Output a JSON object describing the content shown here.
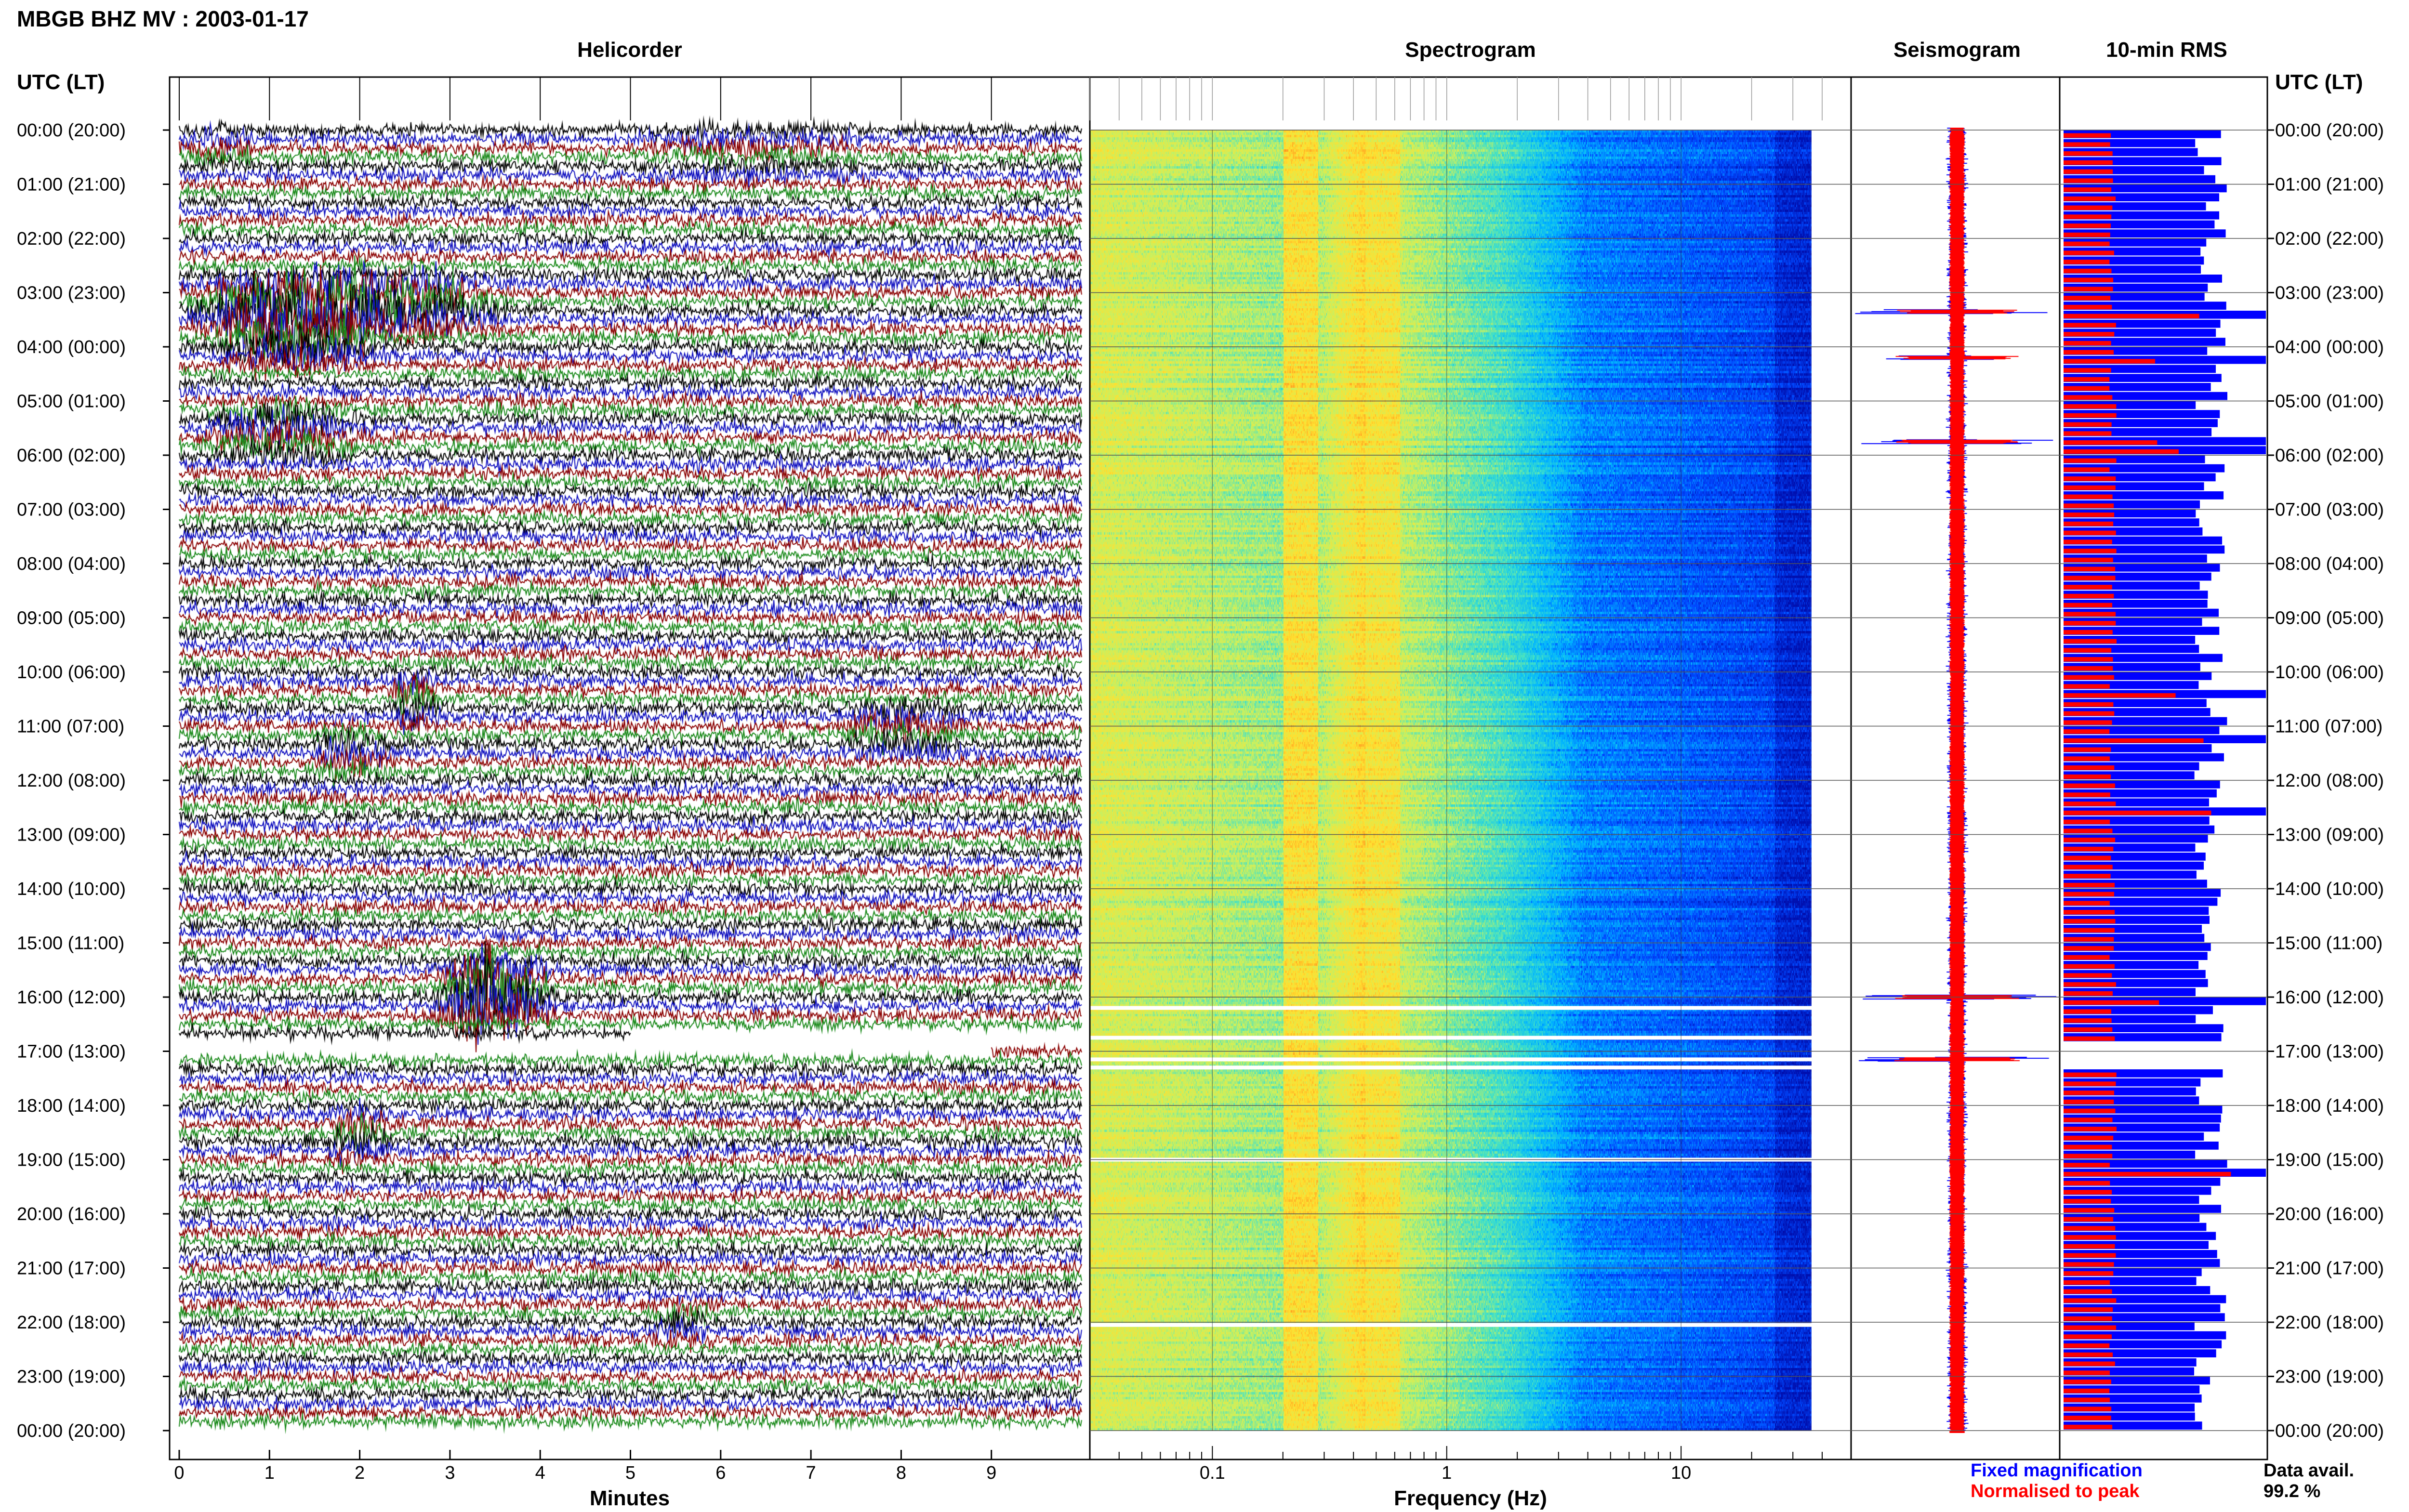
{
  "chart_data": {
    "type": "helicorder-panel",
    "title": "MBGB BHZ MV : 2003-01-17",
    "row_axis_label": "UTC (LT)",
    "hour_labels": [
      "00:00 (20:00)",
      "01:00 (21:00)",
      "02:00 (22:00)",
      "03:00 (23:00)",
      "04:00 (00:00)",
      "05:00 (01:00)",
      "06:00 (02:00)",
      "07:00 (03:00)",
      "08:00 (04:00)",
      "09:00 (05:00)",
      "10:00 (06:00)",
      "11:00 (07:00)",
      "12:00 (08:00)",
      "13:00 (09:00)",
      "14:00 (10:00)",
      "15:00 (11:00)",
      "16:00 (12:00)",
      "17:00 (13:00)",
      "18:00 (14:00)",
      "19:00 (15:00)",
      "20:00 (16:00)",
      "21:00 (17:00)",
      "22:00 (18:00)",
      "23:00 (19:00)",
      "00:00 (20:00)"
    ],
    "panels": {
      "helicorder": {
        "title": "Helicorder",
        "xlabel": "Minutes",
        "xticks": [
          "0",
          "1",
          "2",
          "3",
          "4",
          "5",
          "6",
          "7",
          "8",
          "9"
        ],
        "xlim": [
          0,
          10
        ],
        "trace_colors": [
          "#000000",
          "#1010c0",
          "#8b0000",
          "#1a8a1a"
        ],
        "events": [
          {
            "row": 0.3,
            "start_min": 0.0,
            "end_min": 1.2,
            "amp": 0.6
          },
          {
            "row": 0.35,
            "start_min": 5.0,
            "end_min": 8.5,
            "amp": 0.5
          },
          {
            "row": 3.3,
            "start_min": 0.0,
            "end_min": 4.8,
            "amp": 2.6
          },
          {
            "row": 3.85,
            "start_min": 0.3,
            "end_min": 3.0,
            "amp": 1.6
          },
          {
            "row": 5.55,
            "start_min": 0.2,
            "end_min": 2.8,
            "amp": 1.2
          },
          {
            "row": 10.55,
            "start_min": 2.3,
            "end_min": 3.2,
            "amp": 1.1
          },
          {
            "row": 11.05,
            "start_min": 7.3,
            "end_min": 9.2,
            "amp": 1.0
          },
          {
            "row": 11.5,
            "start_min": 1.4,
            "end_min": 2.7,
            "amp": 1.0
          },
          {
            "row": 15.95,
            "start_min": 2.8,
            "end_min": 4.6,
            "amp": 3.2
          },
          {
            "row": 18.55,
            "start_min": 1.6,
            "end_min": 2.7,
            "amp": 1.0
          },
          {
            "row": 22.0,
            "start_min": 5.2,
            "end_min": 6.3,
            "amp": 0.6
          }
        ],
        "data_gap": {
          "start_hour": 16.75,
          "end_hour": 17.15
        }
      },
      "spectrogram": {
        "title": "Spectrogram",
        "xlabel": "Frequency (Hz)",
        "xscale": "log",
        "xticks": [
          "0.1",
          "1",
          "10"
        ],
        "xlim": [
          0.03,
          40
        ],
        "colormap": [
          "#0010b0",
          "#0048ff",
          "#00b4ff",
          "#40e0c8",
          "#c8f060",
          "#ffe030",
          "#ff9a20",
          "#d02000"
        ],
        "gap_hours": [
          16.2,
          16.75,
          17.15,
          17.3,
          19.0,
          22.05
        ]
      },
      "seismogram": {
        "title": "Seismogram",
        "colors": {
          "fixed": "#0000ff",
          "normalised": "#ff0000"
        },
        "spikes_hour": [
          3.35,
          4.2,
          5.75,
          16.0,
          17.15
        ]
      },
      "rms": {
        "title": "10-min RMS",
        "colors": {
          "fixed": "#0000ff",
          "normalised": "#ff0000"
        },
        "spikes_hour": [
          3.35,
          4.2,
          5.75,
          10.35,
          11.2,
          12.5,
          16.0,
          19.2
        ]
      }
    },
    "legend": {
      "fixed_label": "Fixed magnification",
      "normalised_label": "Normalised to peak",
      "fixed_color": "#0000ff",
      "normalised_color": "#ff0000"
    },
    "availability": {
      "label": "Data avail.",
      "value": "99.2 %"
    }
  }
}
